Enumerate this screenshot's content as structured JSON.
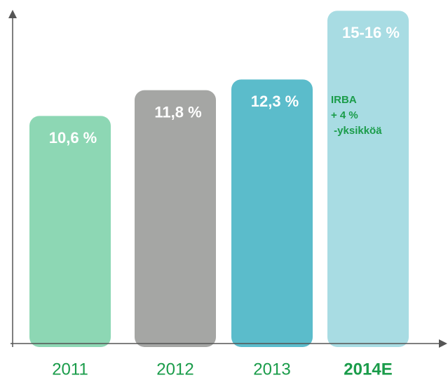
{
  "chart_data": {
    "type": "bar",
    "categories": [
      "2011",
      "2012",
      "2013",
      "2014E"
    ],
    "values": [
      10.6,
      11.8,
      12.3,
      15.5
    ],
    "value_labels": [
      "10,6 %",
      "11,8 %",
      "12,3 %",
      "15-16 %"
    ],
    "colors": [
      "#8dd7b4",
      "#a5a6a4",
      "#5bbccb",
      "#a8dce3"
    ],
    "ylim": [
      0,
      16
    ],
    "annotation": [
      "IRBA",
      "+ 4 %",
      " -yksikköä"
    ]
  }
}
